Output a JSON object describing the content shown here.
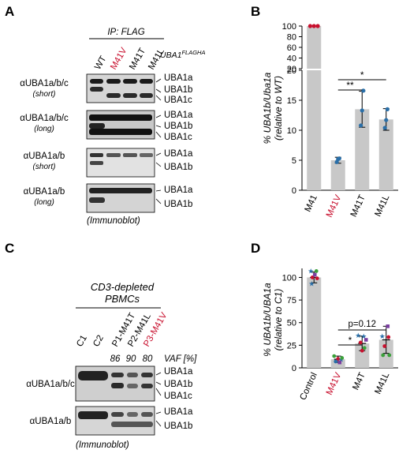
{
  "panels": {
    "A": {
      "letter": "A",
      "ip_label": "IP: FLAG",
      "construct_label": "UBA1",
      "construct_sup": "FLAGHA",
      "lanes": [
        "WT",
        "M41V",
        "M41T",
        "M41L"
      ],
      "blots": [
        {
          "antibody": "αUBA1a/b/c",
          "exposure": "(short)",
          "bands": [
            "UBA1a",
            "UBA1b",
            "UBA1c"
          ]
        },
        {
          "antibody": "αUBA1a/b/c",
          "exposure": "(long)",
          "bands": [
            "UBA1a",
            "UBA1b",
            "UBA1c"
          ]
        },
        {
          "antibody": "αUBA1a/b",
          "exposure": "(short)",
          "bands": [
            "UBA1a",
            "UBA1b"
          ]
        },
        {
          "antibody": "αUBA1a/b",
          "exposure": "(long)",
          "bands": [
            "UBA1a",
            "UBA1b"
          ]
        }
      ],
      "footer": "(Immunoblot)"
    },
    "C": {
      "letter": "C",
      "sample_label_line1": "CD3-depleted",
      "sample_label_line2": "PBMCs",
      "lanes": [
        "C1",
        "C2",
        "P1-M41T",
        "P2-M41L",
        "P3-M41V"
      ],
      "vaf_label": "VAF [%]",
      "vaf_values": [
        "86",
        "90",
        "80"
      ],
      "blots": [
        {
          "antibody": "αUBA1a/b/c",
          "bands": [
            "UBA1a",
            "UBA1b",
            "UBA1c"
          ]
        },
        {
          "antibody": "αUBA1a/b",
          "bands": [
            "UBA1a",
            "UBA1b"
          ]
        }
      ],
      "footer": "(Immunoblot)"
    }
  },
  "colors": {
    "highlight": "#c8102e",
    "bar": "#c8c8c8",
    "blue": "#2a6fa8",
    "green": "#3aa03a",
    "purple": "#7a3fa0"
  },
  "chart_data": [
    {
      "panel": "B",
      "type": "bar",
      "ylabel_line1": "% UBA1b/Uba1a",
      "ylabel_line2": "(relative to WT)",
      "categories": [
        "M41",
        "M41V",
        "M41T",
        "M41L"
      ],
      "values": [
        100,
        5,
        13.5,
        11.8
      ],
      "errors": [
        0,
        0.5,
        3.0,
        1.8
      ],
      "points": [
        [
          100,
          100,
          100
        ],
        [
          4.7,
          5.2,
          5.3
        ],
        [
          10.8,
          13.3,
          16.6
        ],
        [
          10.4,
          11.7,
          13.5
        ]
      ],
      "y_ticks_lower": [
        "0",
        "5",
        "10",
        "15",
        "20"
      ],
      "y_ticks_upper": [
        "20",
        "40",
        "60",
        "80",
        "100"
      ],
      "ylim": [
        0,
        100
      ],
      "axis_break": 20,
      "significance": [
        {
          "from": "M41V",
          "to": "M41T",
          "label": "**"
        },
        {
          "from": "M41V",
          "to": "M41L",
          "label": "*"
        }
      ]
    },
    {
      "panel": "D",
      "type": "bar",
      "ylabel_line1": "% UBA1b/UBA1a",
      "ylabel_line2": "(relative to C1)",
      "categories": [
        "Control",
        "M41V",
        "M4T",
        "M41L"
      ],
      "values": [
        100,
        9.5,
        27,
        31
      ],
      "errors": [
        6,
        3.5,
        8,
        15
      ],
      "y_ticks": [
        "0",
        "25",
        "50",
        "75",
        "100"
      ],
      "ylim": [
        0,
        110
      ],
      "significance": [
        {
          "from": "M41V",
          "to": "M4T",
          "label": "*"
        },
        {
          "from": "M41V",
          "to": "M41L",
          "label": "p=0.12"
        }
      ]
    }
  ]
}
